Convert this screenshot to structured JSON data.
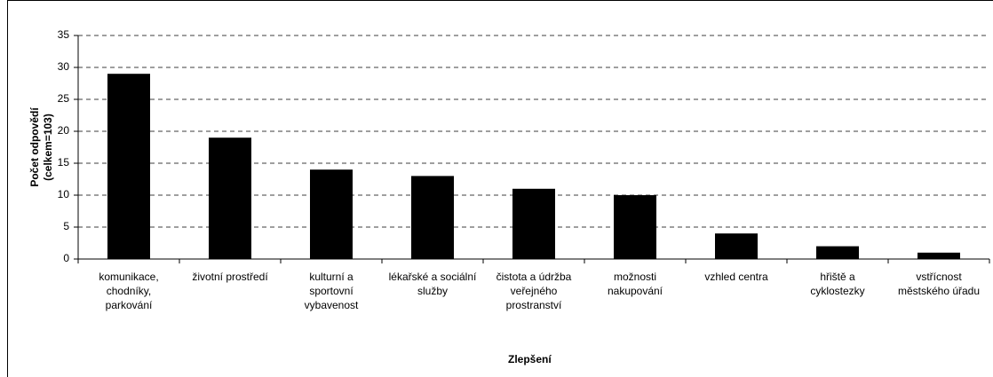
{
  "chart_data": {
    "type": "bar",
    "categories": [
      "komunikace, chodníky, parkování",
      "životní prostředí",
      "kulturní a sportovní vybavenost",
      "lékařské a sociální služby",
      "čistota a údržba veřejného prostranství",
      "možnosti nakupování",
      "vzhled centra",
      "hřiště a cyklostezky",
      "vstřícnost městského úřadu"
    ],
    "values": [
      29,
      19,
      14,
      13,
      11,
      10,
      4,
      2,
      1
    ],
    "color": "#000000",
    "ylim": [
      0,
      35
    ],
    "yticks": [
      0,
      5,
      10,
      15,
      20,
      25,
      30,
      35
    ],
    "grid": true,
    "y_label": "Počet odpovědí (celkem=103)",
    "x_label": "Zlepšení"
  }
}
